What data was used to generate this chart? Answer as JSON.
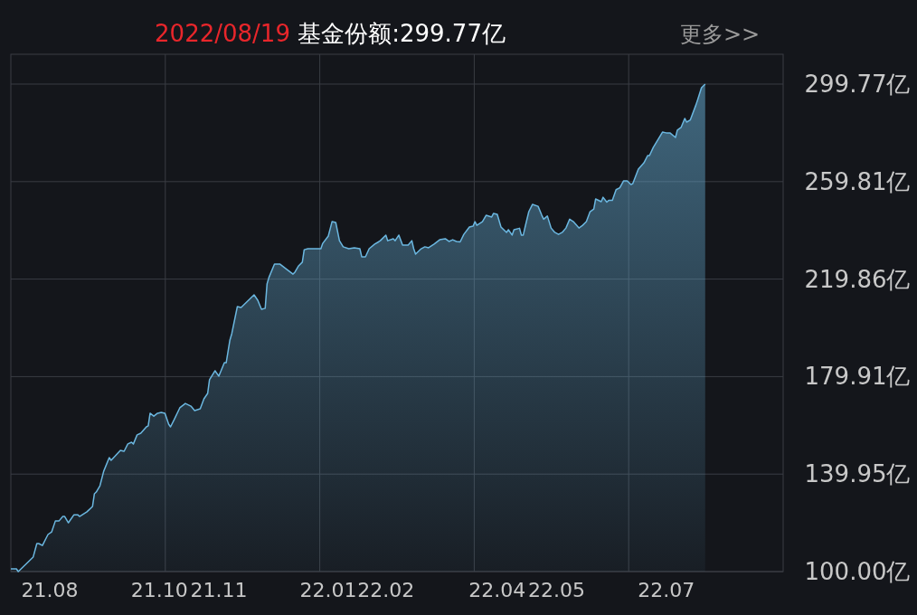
{
  "chart_data": {
    "type": "area",
    "title": "2022/08/19 基金份额:299.77亿",
    "annotations": [
      "更多>>"
    ],
    "xlim": [
      "2021-08-10",
      "2022-09-30"
    ],
    "xticks": [
      {
        "value": "2021-08-31",
        "label": "21.08"
      },
      {
        "value": "2021-10-29",
        "label": "21.10"
      },
      {
        "value": "2021-11-30",
        "label": "21.11"
      },
      {
        "value": "2022-01-28",
        "label": "22.01"
      },
      {
        "value": "2022-02-28",
        "label": "22.02"
      },
      {
        "value": "2022-04-29",
        "label": "22.04"
      },
      {
        "value": "2022-05-31",
        "label": "22.05"
      },
      {
        "value": "2022-07-29",
        "label": "22.07"
      }
    ],
    "ylim": [
      100,
      312
    ],
    "yticks": [
      {
        "value": 100,
        "label": "100.00亿"
      },
      {
        "value": 139.95,
        "label": "139.95亿"
      },
      {
        "value": 179.91,
        "label": "179.91亿"
      },
      {
        "value": 219.86,
        "label": "219.86亿"
      },
      {
        "value": 259.81,
        "label": "259.81亿"
      },
      {
        "value": 299.77,
        "label": "299.77亿"
      }
    ],
    "grid": true,
    "series": [
      {
        "color": "#6bb7e0",
        "x": [
          "2021-08-10",
          "2021-08-13",
          "2021-08-14",
          "2021-08-17",
          "2021-08-22",
          "2021-08-24",
          "2021-08-25",
          "2021-08-27",
          "2021-08-30",
          "2021-09-01",
          "2021-09-03",
          "2021-09-05",
          "2021-09-07",
          "2021-09-08",
          "2021-09-10",
          "2021-09-13",
          "2021-09-15",
          "2021-09-16",
          "2021-09-20",
          "2021-09-23",
          "2021-09-24",
          "2021-09-25",
          "2021-09-27",
          "2021-09-29",
          "2021-10-02",
          "2021-10-03",
          "2021-10-08",
          "2021-10-10",
          "2021-10-12",
          "2021-10-14",
          "2021-10-15",
          "2021-10-17",
          "2021-10-19",
          "2021-10-22",
          "2021-10-23",
          "2021-10-24",
          "2021-10-26",
          "2021-10-28",
          "2021-10-30",
          "2021-11-01",
          "2021-11-03",
          "2021-11-04",
          "2021-11-06",
          "2021-11-09",
          "2021-11-12",
          "2021-11-15",
          "2021-11-17",
          "2021-11-20",
          "2021-11-22",
          "2021-11-24",
          "2021-11-25",
          "2021-11-28",
          "2021-11-30",
          "2021-12-01",
          "2021-12-03",
          "2021-12-04",
          "2021-12-06",
          "2021-12-07",
          "2021-12-10",
          "2021-12-12",
          "2021-12-19",
          "2021-12-21",
          "2021-12-23",
          "2021-12-25",
          "2021-12-26",
          "2021-12-27",
          "2021-12-30",
          "2022-01-02",
          "2022-01-05",
          "2022-01-09",
          "2022-01-10",
          "2022-01-12",
          "2022-01-14",
          "2022-01-15",
          "2022-01-17",
          "2022-01-24",
          "2022-01-25",
          "2022-01-28",
          "2022-01-30",
          "2022-02-01",
          "2022-02-03",
          "2022-02-05",
          "2022-02-08",
          "2022-02-11",
          "2022-02-14",
          "2022-02-15",
          "2022-02-17",
          "2022-02-19",
          "2022-02-22",
          "2022-02-24",
          "2022-02-25",
          "2022-02-28",
          "2022-03-01",
          "2022-03-04",
          "2022-03-05",
          "2022-03-07",
          "2022-03-09",
          "2022-03-12",
          "2022-03-14",
          "2022-03-15",
          "2022-03-16",
          "2022-03-19",
          "2022-03-21",
          "2022-03-23",
          "2022-03-26",
          "2022-03-29",
          "2022-04-01",
          "2022-04-03",
          "2022-04-05",
          "2022-04-07",
          "2022-04-09",
          "2022-04-11",
          "2022-04-14",
          "2022-04-16",
          "2022-04-17",
          "2022-04-18",
          "2022-04-21",
          "2022-04-23",
          "2022-04-26",
          "2022-04-27",
          "2022-04-29",
          "2022-05-01",
          "2022-05-04",
          "2022-05-05",
          "2022-05-07",
          "2022-05-08",
          "2022-05-11",
          "2022-05-12",
          "2022-05-13",
          "2022-05-14",
          "2022-05-16",
          "2022-05-18",
          "2022-05-21",
          "2022-05-23",
          "2022-05-24",
          "2022-05-26",
          "2022-05-28",
          "2022-05-30",
          "2022-06-01",
          "2022-06-03",
          "2022-06-05",
          "2022-06-07",
          "2022-06-09",
          "2022-06-12",
          "2022-06-14",
          "2022-06-16",
          "2022-06-18",
          "2022-06-20",
          "2022-06-21",
          "2022-06-24",
          "2022-06-25",
          "2022-06-27",
          "2022-06-28",
          "2022-06-30",
          "2022-07-02",
          "2022-07-04",
          "2022-07-06",
          "2022-07-08",
          "2022-07-10",
          "2022-07-11",
          "2022-07-14",
          "2022-07-17",
          "2022-07-19",
          "2022-07-20",
          "2022-07-22",
          "2022-07-27",
          "2022-07-29",
          "2022-07-31",
          "2022-08-03",
          "2022-08-04",
          "2022-08-06",
          "2022-08-08",
          "2022-08-09",
          "2022-08-11",
          "2022-08-14",
          "2022-08-15",
          "2022-08-17",
          "2022-08-19"
        ],
        "values": [
          101.1,
          101.1,
          100,
          102.2,
          105.9,
          111.5,
          111.5,
          110.7,
          115.2,
          116.3,
          120.8,
          120.8,
          122.6,
          122.6,
          120.0,
          123.3,
          123.3,
          122.6,
          124.5,
          126.7,
          131.9,
          132.6,
          135.2,
          141.1,
          146.7,
          145.6,
          149.7,
          149.3,
          152.3,
          153.0,
          152.3,
          156.0,
          156.7,
          159.3,
          159.7,
          164.9,
          163.7,
          164.9,
          165.2,
          164.9,
          160.4,
          159.3,
          162.3,
          167.1,
          168.9,
          167.8,
          166.0,
          166.7,
          170.8,
          173.0,
          178.6,
          182.3,
          180.1,
          181.9,
          185.6,
          185.6,
          194.9,
          197.5,
          208.6,
          208.2,
          213.4,
          211.2,
          207.5,
          207.9,
          217.9,
          220.5,
          226.0,
          226.0,
          224.2,
          221.9,
          222.7,
          225.3,
          226.8,
          231.9,
          232.3,
          232.3,
          234.5,
          237.5,
          243.4,
          243.1,
          235.6,
          233.1,
          232.3,
          232.7,
          232.3,
          229.0,
          229.0,
          232.3,
          234.2,
          235.1,
          235.6,
          237.9,
          235.6,
          236.4,
          235.6,
          237.9,
          233.8,
          233.8,
          235.6,
          232.3,
          230.1,
          232.3,
          233.1,
          232.7,
          234.2,
          236.0,
          236.4,
          235.3,
          236.0,
          235.3,
          235.1,
          238.2,
          241.2,
          241.6,
          243.4,
          241.9,
          243.4,
          246.0,
          245.3,
          246.8,
          246.4,
          241.2,
          239.0,
          240.1,
          237.9,
          240.1,
          240.7,
          237.9,
          237.9,
          241.2,
          247.5,
          250.5,
          249.7,
          246.0,
          244.4,
          245.7,
          240.8,
          239.0,
          238.2,
          239.0,
          240.8,
          244.4,
          243.4,
          240.8,
          241.9,
          243.4,
          247.5,
          248.6,
          252.7,
          251.6,
          253.4,
          251.4,
          252.1,
          252.1,
          256.5,
          257.3,
          260.1,
          260.1,
          258.6,
          259.0,
          264.9,
          267.5,
          270.5,
          270.5,
          273.8,
          280.1,
          279.8,
          279.8,
          277.9,
          280.9,
          282.0,
          285.7,
          284.2,
          285.1,
          291.2,
          293.5,
          298.3,
          299.77
        ]
      }
    ]
  }
}
